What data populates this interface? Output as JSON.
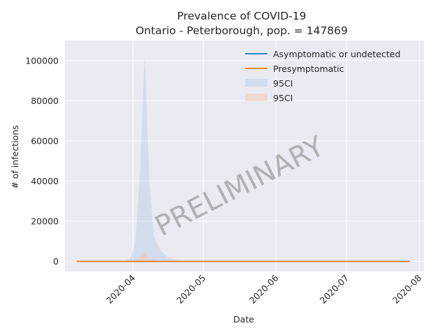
{
  "chart_data": {
    "type": "area",
    "title": "Prevalence of COVID-19",
    "subtitle": "Ontario - Peterborough, pop. = 147869",
    "xlabel": "Date",
    "ylabel": "# of infections",
    "x_start": "2020-03-08",
    "x_end": "2020-07-28",
    "xlim": [
      "2020-03-03",
      "2020-08-03"
    ],
    "ylim": [
      -5000,
      110000
    ],
    "x_ticks": [
      "2020-04",
      "2020-05",
      "2020-06",
      "2020-07",
      "2020-08"
    ],
    "y_ticks": [
      0,
      20000,
      40000,
      60000,
      80000,
      100000
    ],
    "grid": true,
    "legend_position": "top-right",
    "series": [
      {
        "name": "Asymptomatic or undetected",
        "color": "#1f77b4",
        "kind": "line",
        "values": "≈0 over full range"
      },
      {
        "name": "Presymptomatic",
        "color": "#ff7f0e",
        "kind": "line",
        "values": "≈0 over full range"
      }
    ],
    "bands": [
      {
        "name": "95CI",
        "color": "#a9c4e0",
        "opacity": 0.35,
        "points": [
          {
            "x": "2020-03-08",
            "y": 0
          },
          {
            "x": "2020-03-28",
            "y": 0
          },
          {
            "x": "2020-03-31",
            "y": 1500
          },
          {
            "x": "2020-04-02",
            "y": 10000
          },
          {
            "x": "2020-04-04",
            "y": 45000
          },
          {
            "x": "2020-04-06",
            "y": 103000
          },
          {
            "x": "2020-04-08",
            "y": 40000
          },
          {
            "x": "2020-04-10",
            "y": 12000
          },
          {
            "x": "2020-04-13",
            "y": 5000
          },
          {
            "x": "2020-04-16",
            "y": 2000
          },
          {
            "x": "2020-04-20",
            "y": 500
          },
          {
            "x": "2020-04-24",
            "y": 0
          },
          {
            "x": "2020-07-28",
            "y": 0
          }
        ]
      },
      {
        "name": "95CI",
        "color": "#f2c6a8",
        "opacity": 0.45,
        "points": [
          {
            "x": "2020-03-08",
            "y": 0
          },
          {
            "x": "2020-03-30",
            "y": 0
          },
          {
            "x": "2020-04-03",
            "y": 1200
          },
          {
            "x": "2020-04-06",
            "y": 4500
          },
          {
            "x": "2020-04-08",
            "y": 1500
          },
          {
            "x": "2020-04-12",
            "y": 300
          },
          {
            "x": "2020-04-16",
            "y": 0
          },
          {
            "x": "2020-07-28",
            "y": 0
          }
        ]
      }
    ],
    "annotation": "PRELIMINARY"
  }
}
